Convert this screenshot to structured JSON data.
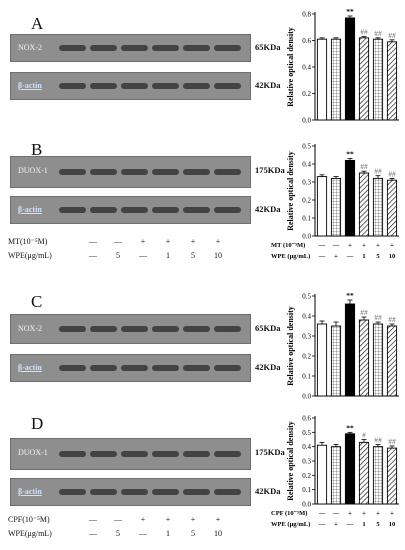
{
  "colors": {
    "band": "#2a2a2a",
    "membrane": "#8e8e8e"
  },
  "panels": [
    {
      "letter": "A",
      "blots": [
        {
          "label": "NOX-2",
          "kda": "65KDa"
        },
        {
          "label": "β-actin",
          "kda": "42KDa"
        }
      ],
      "conditions": []
    },
    {
      "letter": "B",
      "blots": [
        {
          "label": "DUOX-1",
          "kda": "175KDa"
        },
        {
          "label": "β-actin",
          "kda": "42KDa"
        }
      ],
      "conditions": [
        {
          "name": "MT(10⁻⁵M)",
          "values": [
            "—",
            "—",
            "+",
            "+",
            "+",
            "+"
          ]
        },
        {
          "name": "WPE(μg/mL)",
          "values": [
            "—",
            "5",
            "—",
            "1",
            "5",
            "10"
          ]
        }
      ]
    },
    {
      "letter": "C",
      "blots": [
        {
          "label": "NOX-2",
          "kda": "65KDa"
        },
        {
          "label": "β-actin",
          "kda": "42KDa"
        }
      ],
      "conditions": []
    },
    {
      "letter": "D",
      "blots": [
        {
          "label": "DUOX-1",
          "kda": "175KDa"
        },
        {
          "label": "β-actin",
          "kda": "42KDa"
        }
      ],
      "conditions": [
        {
          "name": "CPF(10⁻⁵M)",
          "values": [
            "—",
            "—",
            "+",
            "+",
            "+",
            "+"
          ]
        },
        {
          "name": "WPE(μg/mL)",
          "values": [
            "—",
            "5",
            "—",
            "1",
            "5",
            "10"
          ]
        }
      ]
    }
  ],
  "chart_data": [
    {
      "type": "bar",
      "ylabel": "Relative optical density",
      "ylim": [
        0,
        0.8
      ],
      "yticks": [
        "0.0",
        "0.2",
        "0.4",
        "0.6",
        "0.8"
      ],
      "values": [
        0.61,
        0.61,
        0.77,
        0.62,
        0.61,
        0.59
      ],
      "errors": [
        0.01,
        0.01,
        0.015,
        0.01,
        0.01,
        0.015
      ],
      "fills": [
        "white",
        "grid",
        "black",
        "hatch",
        "grid",
        "hatch"
      ],
      "annotations": [
        "",
        "",
        "**",
        "##",
        "##",
        "##"
      ],
      "conditions": []
    },
    {
      "type": "bar",
      "ylabel": "Relative optical density",
      "ylim": [
        0,
        0.5
      ],
      "yticks": [
        "0.0",
        "0.1",
        "0.2",
        "0.3",
        "0.4",
        "0.5"
      ],
      "values": [
        0.33,
        0.32,
        0.42,
        0.35,
        0.32,
        0.31
      ],
      "errors": [
        0.01,
        0.01,
        0.01,
        0.01,
        0.015,
        0.01
      ],
      "fills": [
        "white",
        "grid",
        "black",
        "hatch",
        "grid",
        "hatch"
      ],
      "annotations": [
        "",
        "",
        "**",
        "##",
        "##",
        "##"
      ],
      "conditions": [
        {
          "name": "MT (10⁻⁵M)",
          "values": [
            "—",
            "—",
            "+",
            "+",
            "+",
            "+"
          ]
        },
        {
          "name": "WPE (μg/mL)",
          "values": [
            "—",
            "+",
            "—",
            "1",
            "5",
            "10"
          ]
        }
      ]
    },
    {
      "type": "bar",
      "ylabel": "Relative optical density",
      "ylim": [
        0,
        0.5
      ],
      "yticks": [
        "0.0",
        "0.1",
        "0.2",
        "0.3",
        "0.4",
        "0.5"
      ],
      "values": [
        0.36,
        0.35,
        0.46,
        0.38,
        0.36,
        0.35
      ],
      "errors": [
        0.015,
        0.02,
        0.02,
        0.015,
        0.01,
        0.01
      ],
      "fills": [
        "white",
        "grid",
        "black",
        "hatch",
        "grid",
        "hatch"
      ],
      "annotations": [
        "",
        "",
        "**",
        "##",
        "##",
        "##"
      ],
      "conditions": []
    },
    {
      "type": "bar",
      "ylabel": "Relative optical density",
      "ylim": [
        0,
        0.6
      ],
      "yticks": [
        "0.0",
        "0.1",
        "0.2",
        "0.3",
        "0.4",
        "0.5",
        "0.6"
      ],
      "values": [
        0.41,
        0.4,
        0.49,
        0.43,
        0.4,
        0.39
      ],
      "errors": [
        0.02,
        0.015,
        0.01,
        0.02,
        0.015,
        0.015
      ],
      "fills": [
        "white",
        "grid",
        "black",
        "hatch",
        "grid",
        "hatch"
      ],
      "annotations": [
        "",
        "",
        "**",
        "#",
        "##",
        "##"
      ],
      "conditions": [
        {
          "name": "CPF (10⁻⁵M)",
          "values": [
            "—",
            "—",
            "+",
            "+",
            "+",
            "+"
          ]
        },
        {
          "name": "WPE (μg/mL)",
          "values": [
            "—",
            "+",
            "—",
            "1",
            "5",
            "10"
          ]
        }
      ]
    }
  ]
}
